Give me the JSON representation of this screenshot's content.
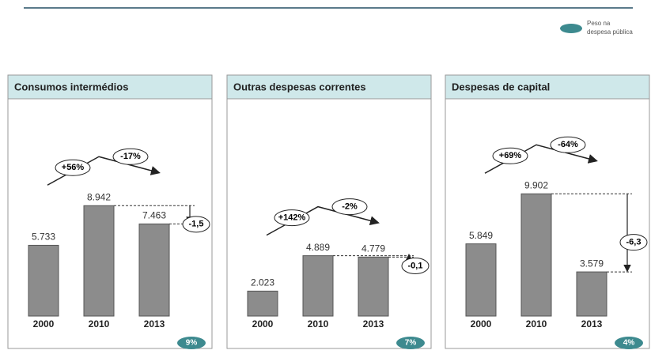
{
  "legend": [
    "Peso na",
    "despesa pública"
  ],
  "legend_color": "#3d8a8f",
  "chart_data": [
    {
      "type": "bar",
      "title": "Consumos intermédios",
      "categories": [
        "2000",
        "2010",
        "2013"
      ],
      "values": [
        5733,
        8942,
        7463
      ],
      "value_labels": [
        "5.733",
        "8.942",
        "7.463"
      ],
      "color": "#8c8c8c",
      "ylim": [
        0,
        16000
      ],
      "annotations": [
        "+56%",
        "-17%",
        "-1,5"
      ],
      "share": 9,
      "share_label": "9%"
    },
    {
      "type": "bar",
      "title": "Outras despesas correntes",
      "categories": [
        "2000",
        "2010",
        "2013"
      ],
      "values": [
        2023,
        4889,
        4779
      ],
      "value_labels": [
        "2.023",
        "4.889",
        "4.779"
      ],
      "color": "#8c8c8c",
      "ylim": [
        0,
        16000
      ],
      "annotations": [
        "+142%",
        "-2%",
        "-0,1"
      ],
      "share": 7,
      "share_label": "7%"
    },
    {
      "type": "bar",
      "title": "Despesas de capital",
      "categories": [
        "2000",
        "2010",
        "2013"
      ],
      "values": [
        5849,
        9902,
        3579
      ],
      "value_labels": [
        "5.849",
        "9.902",
        "3.579"
      ],
      "color": "#8c8c8c",
      "ylim": [
        0,
        16000
      ],
      "annotations": [
        "+69%",
        "-64%",
        "-6,3"
      ],
      "share": 4,
      "share_label": "4%"
    }
  ]
}
